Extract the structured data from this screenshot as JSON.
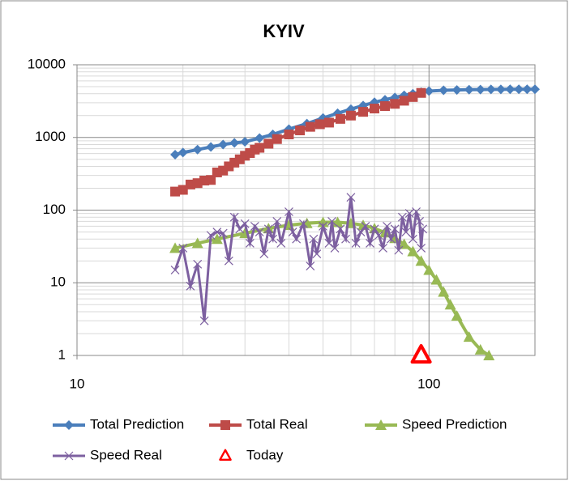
{
  "chart_data": {
    "type": "line",
    "title": "KYIV",
    "log_x": true,
    "log_y": true,
    "grid": true,
    "minor_grid": true,
    "xlim": [
      10,
      200
    ],
    "xticks": [
      10,
      100
    ],
    "ylim": [
      1,
      10000
    ],
    "yticks": [
      1,
      10,
      100,
      1000,
      10000
    ],
    "legend": "bottom",
    "series": [
      {
        "name": "Total Prediction",
        "color": "#4a7ebb",
        "marker": "diamond",
        "x": [
          19,
          20,
          22,
          24,
          26,
          28,
          30,
          33,
          36,
          40,
          45,
          50,
          55,
          60,
          65,
          70,
          75,
          80,
          85,
          90,
          95,
          100,
          110,
          120,
          130,
          140,
          150,
          160,
          170,
          180,
          190,
          200
        ],
        "values": [
          580,
          620,
          680,
          740,
          800,
          840,
          870,
          980,
          1100,
          1300,
          1550,
          1850,
          2150,
          2450,
          2750,
          3050,
          3300,
          3550,
          3800,
          4000,
          4200,
          4350,
          4450,
          4500,
          4540,
          4560,
          4580,
          4590,
          4595,
          4600,
          4600,
          4600
        ]
      },
      {
        "name": "Total Real",
        "color": "#be4b48",
        "marker": "square",
        "x": [
          19,
          20,
          21,
          22,
          23,
          24,
          25,
          26,
          27,
          28,
          29,
          30,
          31,
          32,
          33,
          35,
          37,
          40,
          43,
          46,
          49,
          52,
          56,
          60,
          65,
          70,
          75,
          80,
          85,
          90,
          95
        ],
        "values": [
          180,
          190,
          225,
          235,
          255,
          260,
          330,
          350,
          400,
          450,
          500,
          560,
          610,
          680,
          720,
          820,
          950,
          1100,
          1250,
          1400,
          1520,
          1600,
          1800,
          2000,
          2250,
          2500,
          2700,
          2900,
          3200,
          3600,
          4100
        ]
      },
      {
        "name": "Speed Prediction",
        "color": "#98b954",
        "marker": "triangle",
        "x": [
          19,
          22,
          25,
          30,
          35,
          40,
          45,
          50,
          55,
          60,
          65,
          70,
          75,
          80,
          85,
          90,
          95,
          100,
          105,
          110,
          115,
          120,
          130,
          140,
          148
        ],
        "values": [
          30,
          35,
          40,
          48,
          56,
          62,
          66,
          68,
          68,
          66,
          62,
          56,
          49,
          41,
          34,
          27,
          20,
          15,
          11,
          7.5,
          5,
          3.5,
          1.8,
          1.2,
          1
        ]
      },
      {
        "name": "Speed Real",
        "color": "#7d60a0",
        "marker": "x",
        "x": [
          19,
          20,
          21,
          22,
          23,
          24,
          25,
          26,
          27,
          28,
          29,
          30,
          31,
          32,
          33,
          34,
          35,
          36,
          37,
          38,
          40,
          41,
          42,
          44,
          46,
          47,
          48,
          50,
          52,
          53,
          54,
          56,
          58,
          60,
          62,
          64,
          66,
          68,
          70,
          72,
          74,
          76,
          78,
          80,
          82,
          84,
          86,
          88,
          90,
          92,
          94,
          95,
          96
        ],
        "values": [
          15,
          30,
          9,
          18,
          3,
          45,
          50,
          48,
          20,
          80,
          55,
          65,
          35,
          60,
          50,
          25,
          55,
          40,
          70,
          35,
          95,
          50,
          40,
          65,
          17,
          40,
          25,
          60,
          35,
          70,
          30,
          55,
          40,
          150,
          35,
          50,
          60,
          35,
          55,
          45,
          30,
          60,
          40,
          55,
          28,
          80,
          50,
          90,
          40,
          95,
          70,
          30,
          55
        ]
      },
      {
        "name": "Today",
        "color": "#ff0000",
        "marker": "open-triangle",
        "x": [
          95
        ],
        "values": [
          1
        ]
      }
    ]
  }
}
